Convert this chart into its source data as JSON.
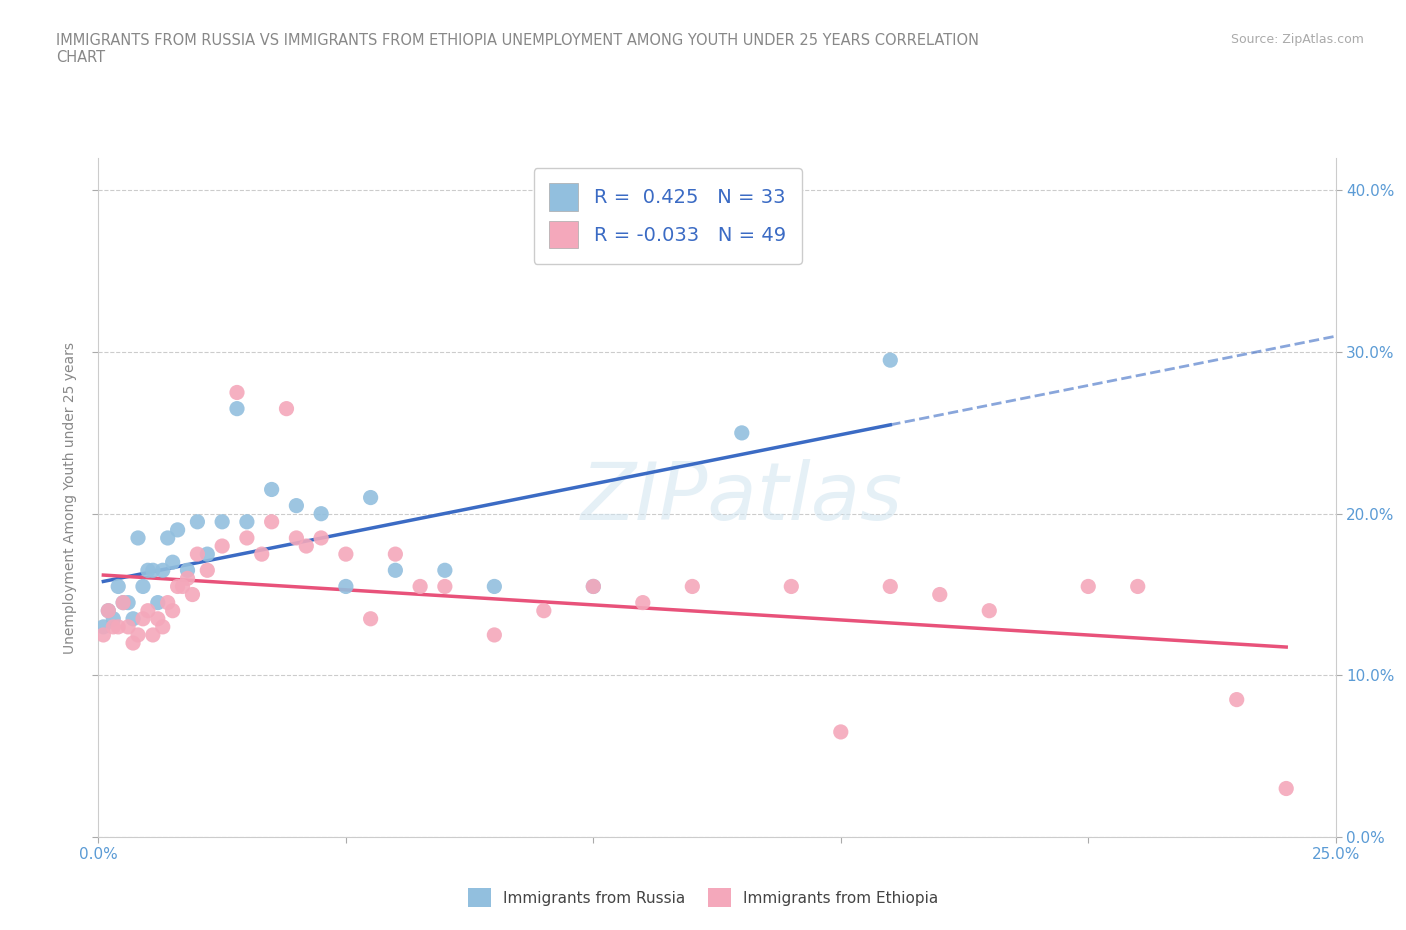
{
  "title": "IMMIGRANTS FROM RUSSIA VS IMMIGRANTS FROM ETHIOPIA UNEMPLOYMENT AMONG YOUTH UNDER 25 YEARS CORRELATION\nCHART",
  "source": "Source: ZipAtlas.com",
  "ylabel": "Unemployment Among Youth under 25 years",
  "xlim": [
    0.0,
    0.25
  ],
  "ylim": [
    0.0,
    0.42
  ],
  "russia_R": 0.425,
  "russia_N": 33,
  "ethiopia_R": -0.033,
  "ethiopia_N": 49,
  "russia_color": "#92BFDE",
  "ethiopia_color": "#F4A8BB",
  "russia_line_color": "#3B6BC4",
  "ethiopia_line_color": "#E8527A",
  "yticks": [
    0.0,
    0.1,
    0.2,
    0.3,
    0.4
  ],
  "xticks": [
    0.0,
    0.05,
    0.1,
    0.15,
    0.2,
    0.25
  ],
  "russia_x": [
    0.001,
    0.002,
    0.003,
    0.004,
    0.005,
    0.006,
    0.007,
    0.008,
    0.009,
    0.01,
    0.011,
    0.012,
    0.013,
    0.014,
    0.015,
    0.016,
    0.018,
    0.02,
    0.022,
    0.025,
    0.028,
    0.03,
    0.035,
    0.04,
    0.045,
    0.05,
    0.055,
    0.06,
    0.07,
    0.08,
    0.1,
    0.13,
    0.16
  ],
  "russia_y": [
    0.13,
    0.14,
    0.135,
    0.155,
    0.145,
    0.145,
    0.135,
    0.185,
    0.155,
    0.165,
    0.165,
    0.145,
    0.165,
    0.185,
    0.17,
    0.19,
    0.165,
    0.195,
    0.175,
    0.195,
    0.265,
    0.195,
    0.215,
    0.205,
    0.2,
    0.155,
    0.21,
    0.165,
    0.165,
    0.155,
    0.155,
    0.25,
    0.295
  ],
  "ethiopia_x": [
    0.001,
    0.002,
    0.003,
    0.004,
    0.005,
    0.006,
    0.007,
    0.008,
    0.009,
    0.01,
    0.011,
    0.012,
    0.013,
    0.014,
    0.015,
    0.016,
    0.017,
    0.018,
    0.019,
    0.02,
    0.022,
    0.025,
    0.028,
    0.03,
    0.033,
    0.035,
    0.038,
    0.04,
    0.042,
    0.045,
    0.05,
    0.055,
    0.06,
    0.065,
    0.07,
    0.08,
    0.09,
    0.1,
    0.11,
    0.12,
    0.14,
    0.15,
    0.16,
    0.17,
    0.18,
    0.2,
    0.21,
    0.23,
    0.24
  ],
  "ethiopia_y": [
    0.125,
    0.14,
    0.13,
    0.13,
    0.145,
    0.13,
    0.12,
    0.125,
    0.135,
    0.14,
    0.125,
    0.135,
    0.13,
    0.145,
    0.14,
    0.155,
    0.155,
    0.16,
    0.15,
    0.175,
    0.165,
    0.18,
    0.275,
    0.185,
    0.175,
    0.195,
    0.265,
    0.185,
    0.18,
    0.185,
    0.175,
    0.135,
    0.175,
    0.155,
    0.155,
    0.125,
    0.14,
    0.155,
    0.145,
    0.155,
    0.155,
    0.065,
    0.155,
    0.15,
    0.14,
    0.155,
    0.155,
    0.085,
    0.03
  ]
}
